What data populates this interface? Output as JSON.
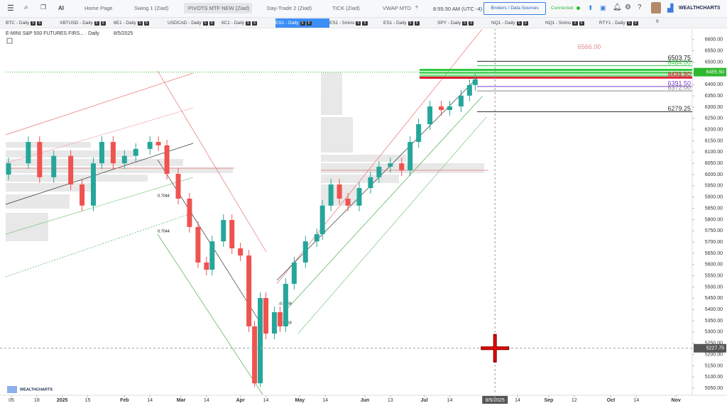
{
  "toolbar": {
    "ai": "AI",
    "tabs": [
      "Home Page",
      "Swing 1 (Ziad)",
      "PIVOTS MTF NEW (Ziad)",
      "Day-Trade 2 (Ziad)",
      "TICK (Ziad)",
      "VWAP MTD"
    ],
    "active_tab": 2,
    "add": "+",
    "time": "8:55:30 AM",
    "timezone": "(UTC -4)",
    "broker_button": "Brokers / Data Sources",
    "status": "Connected",
    "brand": "WEALTHCHARTS"
  },
  "watchlist": {
    "symbols": [
      "BTC - Daily",
      "XBTUSD - Daily",
      "6E1 - Daily",
      "USDCAD - Daily",
      "6C1 - Daily",
      "ES1 - Daily",
      "ES1 - 5mins",
      "ES1 - Daily",
      "SPY - Daily",
      "NQ1 - Daily",
      "NQ1 - 5mins",
      "RTY1 - Daily"
    ],
    "badge": "5",
    "active": 5,
    "more": "9"
  },
  "chart_data": {
    "type": "candlestick",
    "title": "E-MINI S&P 500 FUTURES FIRS... · Daily",
    "date": "8/5/2025",
    "logo": "WEALTHCHARTS",
    "x": [
      0,
      7,
      11,
      16,
      22,
      26,
      30,
      33,
      37,
      41,
      45,
      50,
      53,
      56,
      60,
      64,
      67,
      70,
      72,
      76,
      79,
      82,
      85,
      87,
      89,
      91,
      94,
      96,
      98,
      101,
      105,
      109,
      111,
      114,
      117,
      120,
      124,
      128,
      131,
      135,
      139,
      142,
      145,
      149,
      153,
      156,
      160,
      163,
      165
    ],
    "open": [
      6000,
      6050,
      6145,
      5988,
      6083,
      5956,
      5862,
      6050,
      6145,
      6050,
      6083,
      6114,
      6145,
      6130,
      6003,
      5893,
      5767,
      5609,
      5577,
      5703,
      5798,
      5672,
      5640,
      5325,
      5072,
      5451,
      5293,
      5388,
      5325,
      5514,
      5609,
      5703,
      5735,
      5862,
      5956,
      5893,
      5862,
      5940,
      5988,
      6035,
      6050,
      6019,
      6145,
      6224,
      6303,
      6287,
      6303,
      6351,
      6398
    ],
    "high": [
      6075,
      6170,
      6170,
      6108,
      6108,
      5981,
      6075,
      6170,
      6170,
      6108,
      6139,
      6170,
      6170,
      6155,
      6028,
      5918,
      5792,
      5634,
      5728,
      5823,
      5823,
      5697,
      5665,
      5350,
      5476,
      5476,
      5413,
      5413,
      5539,
      5634,
      5728,
      5760,
      5887,
      5981,
      5981,
      5918,
      5965,
      6013,
      6060,
      6075,
      6075,
      6170,
      6249,
      6328,
      6328,
      6328,
      6376,
      6423,
      6448
    ],
    "low": [
      5975,
      6025,
      5963,
      5963,
      5931,
      5837,
      5837,
      6025,
      6025,
      6025,
      6058,
      6089,
      6105,
      5978,
      5868,
      5742,
      5584,
      5552,
      5552,
      5678,
      5647,
      5615,
      5300,
      5055,
      5055,
      5268,
      5268,
      5300,
      5300,
      5489,
      5584,
      5678,
      5710,
      5837,
      5868,
      5837,
      5837,
      5915,
      5963,
      6010,
      5994,
      5994,
      6120,
      6199,
      6262,
      6262,
      6278,
      6326,
      6373
    ],
    "close": [
      6050,
      6145,
      5988,
      6083,
      5956,
      5862,
      6050,
      6145,
      6050,
      6083,
      6114,
      6145,
      6130,
      6003,
      5893,
      5767,
      5609,
      5577,
      5703,
      5798,
      5672,
      5640,
      5325,
      5072,
      5451,
      5293,
      5388,
      5325,
      5514,
      5609,
      5703,
      5735,
      5862,
      5956,
      5893,
      5862,
      5940,
      5988,
      6035,
      6050,
      6019,
      6145,
      6224,
      6303,
      6287,
      6303,
      6351,
      6398,
      6423
    ],
    "colors": {
      "up": "#26a69a",
      "down": "#ef5350"
    },
    "xlim": [
      -1,
      246
    ],
    "ylim": [
      5022,
      6650
    ],
    "yticks": [
      {
        "value": 6600,
        "label": "6600.00"
      },
      {
        "value": 6550,
        "label": "6550.00"
      },
      {
        "value": 6500,
        "label": "6500.00"
      },
      {
        "value": 6450,
        "label": "6450.00"
      },
      {
        "value": 6400,
        "label": "6400.00"
      },
      {
        "value": 6350,
        "label": "6350.00"
      },
      {
        "value": 6300,
        "label": "6300.00"
      },
      {
        "value": 6250,
        "label": "6250.00"
      },
      {
        "value": 6200,
        "label": "6200.00"
      },
      {
        "value": 6150,
        "label": "6150.00"
      },
      {
        "value": 6100,
        "label": "6100.00"
      },
      {
        "value": 6050,
        "label": "6050.00"
      },
      {
        "value": 6000,
        "label": "6000.00"
      },
      {
        "value": 5950,
        "label": "5950.00"
      },
      {
        "value": 5900,
        "label": "5900.00"
      },
      {
        "value": 5850,
        "label": "5850.00"
      },
      {
        "value": 5800,
        "label": "5800.00"
      },
      {
        "value": 5750,
        "label": "5750.00"
      },
      {
        "value": 5700,
        "label": "5700.00"
      },
      {
        "value": 5650,
        "label": "5650.00"
      },
      {
        "value": 5600,
        "label": "5600.00"
      },
      {
        "value": 5550,
        "label": "5550.00"
      },
      {
        "value": 5500,
        "label": "5500.00"
      },
      {
        "value": 5450,
        "label": "5450.00"
      },
      {
        "value": 5400,
        "label": "5400.00"
      },
      {
        "value": 5350,
        "label": "5350.00"
      },
      {
        "value": 5300,
        "label": "5300.00"
      },
      {
        "value": 5250,
        "label": "5250.00"
      },
      {
        "value": 5200,
        "label": "5200.00"
      },
      {
        "value": 5150,
        "label": "5150.00"
      },
      {
        "value": 5100,
        "label": "5100.00"
      },
      {
        "value": 5050,
        "label": "5050.00"
      }
    ],
    "xticks": [
      {
        "value": 1,
        "label": "05"
      },
      {
        "value": 10,
        "label": "18"
      },
      {
        "value": 19,
        "label": "2025"
      },
      {
        "value": 28,
        "label": "15"
      },
      {
        "value": 41,
        "label": "Feb"
      },
      {
        "value": 50,
        "label": "14"
      },
      {
        "value": 61,
        "label": "Mar"
      },
      {
        "value": 70,
        "label": "14"
      },
      {
        "value": 82,
        "label": "Apr"
      },
      {
        "value": 91,
        "label": "14"
      },
      {
        "value": 103,
        "label": "May"
      },
      {
        "value": 112,
        "label": "14"
      },
      {
        "value": 126,
        "label": "Jun"
      },
      {
        "value": 135,
        "label": "13"
      },
      {
        "value": 147,
        "label": "Jul"
      },
      {
        "value": 156,
        "label": "14"
      },
      {
        "value": 172,
        "label": "8/5/2025"
      },
      {
        "value": 180,
        "label": "14"
      },
      {
        "value": 191,
        "label": "Sep"
      },
      {
        "value": 200,
        "label": "12"
      },
      {
        "value": 213,
        "label": "Oct"
      },
      {
        "value": 222,
        "label": "14"
      },
      {
        "value": 236,
        "label": "Nov"
      }
    ],
    "last_price": {
      "value": 6455.5,
      "label": "6455.50",
      "color": "#2eb82e"
    },
    "cursor_price": {
      "value": 5227.75,
      "label": "5227.75"
    },
    "levels": [
      {
        "value": 6503.75,
        "label": "6503.75",
        "color": "#222222"
      },
      {
        "value": 6484,
        "label": "6484.00",
        "color": "#2ecc40"
      },
      {
        "value": 6431.5,
        "label": "6431.50",
        "color": "#e0182d"
      },
      {
        "value": 6428.5,
        "label": "6428.50",
        "color": "#f0506e"
      },
      {
        "value": 6391.5,
        "label": "6391.50",
        "color": "#7b3fd0"
      },
      {
        "value": 6372,
        "label": "6372.00",
        "color": "#888888"
      },
      {
        "value": 6279.25,
        "label": "6279.25",
        "color": "#333333"
      }
    ],
    "target": {
      "value": 6566,
      "label": "6566.00",
      "color": "#e08a8a"
    },
    "fib_labels": [
      "0.7044",
      "0.7044",
      "-0.9169",
      "-0.9169"
    ]
  }
}
